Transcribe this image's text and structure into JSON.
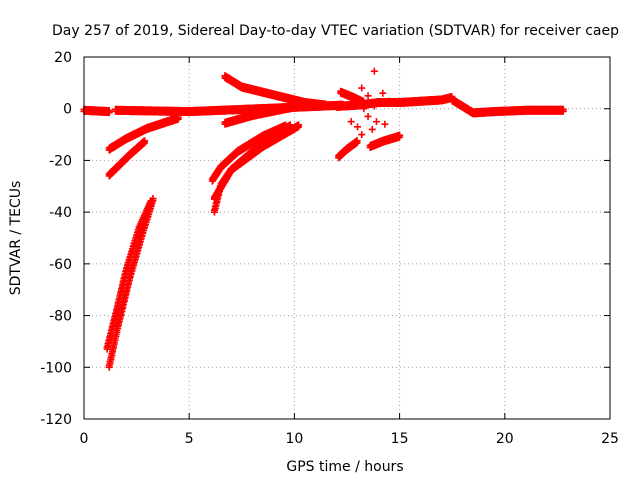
{
  "chart_data": {
    "type": "scatter",
    "title": "Day 257 of 2019, Sidereal Day-to-day VTEC variation (SDTVAR) for receiver caep",
    "xlabel": "GPS time / hours",
    "ylabel": "SDTVAR / TECUs",
    "xlim": [
      0,
      25
    ],
    "ylim": [
      -120,
      20
    ],
    "xticks": [
      0,
      5,
      10,
      15,
      20,
      25
    ],
    "yticks": [
      -120,
      -100,
      -80,
      -60,
      -40,
      -20,
      0,
      20
    ],
    "grid": true,
    "marker": "+",
    "series": [
      {
        "name": "SDTVAR",
        "color": "#ff0000",
        "segments": [
          {
            "x": [
              0.0,
              1.2
            ],
            "y": [
              -1.0,
              -1.5
            ]
          },
          {
            "x": [
              1.2,
              2.0,
              3.0,
              4.5
            ],
            "y": [
              -16.0,
              -12.0,
              -8.0,
              -4.0
            ]
          },
          {
            "x": [
              1.2,
              2.2,
              2.9
            ],
            "y": [
              -26.0,
              -18.0,
              -13.0
            ]
          },
          {
            "x": [
              1.2,
              1.6,
              2.2,
              2.8,
              3.3
            ],
            "y": [
              -100.0,
              -85.0,
              -65.0,
              -48.0,
              -35.0
            ]
          },
          {
            "x": [
              1.1,
              1.5,
              2.0,
              2.6,
              3.2
            ],
            "y": [
              -93.0,
              -80.0,
              -63.0,
              -47.0,
              -36.0
            ]
          },
          {
            "x": [
              1.5,
              5.0,
              8.0,
              11.0,
              12.3
            ],
            "y": [
              -1.0,
              -1.5,
              -0.5,
              0.5,
              1.0
            ]
          },
          {
            "x": [
              6.7,
              7.5,
              9.0,
              10.5,
              11.5
            ],
            "y": [
              12.0,
              8.0,
              5.0,
              2.0,
              1.0
            ]
          },
          {
            "x": [
              6.7,
              8.0,
              9.5,
              10.5
            ],
            "y": [
              -6.0,
              -3.0,
              -0.5,
              1.0
            ]
          },
          {
            "x": [
              6.2,
              6.5,
              7.0,
              8.0,
              9.0,
              9.8
            ],
            "y": [
              -40.0,
              -30.0,
              -24.0,
              -17.0,
              -11.0,
              -7.0
            ]
          },
          {
            "x": [
              6.1,
              6.5,
              7.3,
              8.5,
              9.6
            ],
            "y": [
              -28.0,
              -23.0,
              -17.0,
              -11.0,
              -7.0
            ]
          },
          {
            "x": [
              6.2,
              7.0,
              8.5,
              10.2
            ],
            "y": [
              -35.0,
              -24.0,
              -15.0,
              -7.0
            ]
          },
          {
            "x": [
              12.1,
              12.5,
              13.0
            ],
            "y": [
              -19.0,
              -16.0,
              -13.0
            ]
          },
          {
            "x": [
              12.2,
              12.8,
              13.3
            ],
            "y": [
              6.0,
              4.0,
              2.0
            ]
          },
          {
            "x": [
              13.6,
              14.2,
              15.0
            ],
            "y": [
              -15.0,
              -13.0,
              -11.0
            ]
          },
          {
            "x": [
              14.0,
              15.0,
              16.0,
              17.0,
              17.5
            ],
            "y": [
              2.0,
              2.0,
              2.5,
              3.0,
              4.0
            ]
          },
          {
            "x": [
              17.5,
              18.5,
              19.5,
              21.0,
              22.8
            ],
            "y": [
              3.0,
              -2.0,
              -1.5,
              -1.0,
              -1.0
            ]
          },
          {
            "x": [
              12.0,
              13.0,
              14.0
            ],
            "y": [
              0.5,
              1.0,
              2.0
            ]
          }
        ],
        "points": [
          {
            "x": 13.8,
            "y": 14.5
          },
          {
            "x": 13.2,
            "y": 8.0
          },
          {
            "x": 13.5,
            "y": 5.0
          },
          {
            "x": 14.2,
            "y": 6.0
          },
          {
            "x": 13.3,
            "y": 0.0
          },
          {
            "x": 13.8,
            "y": 1.0
          },
          {
            "x": 12.7,
            "y": -5.0
          },
          {
            "x": 13.0,
            "y": -7.0
          },
          {
            "x": 13.5,
            "y": -3.0
          },
          {
            "x": 13.9,
            "y": -5.0
          },
          {
            "x": 13.2,
            "y": -10.0
          },
          {
            "x": 14.3,
            "y": -6.0
          },
          {
            "x": 13.7,
            "y": -8.0
          },
          {
            "x": 14.5,
            "y": 3.0
          }
        ]
      }
    ]
  }
}
